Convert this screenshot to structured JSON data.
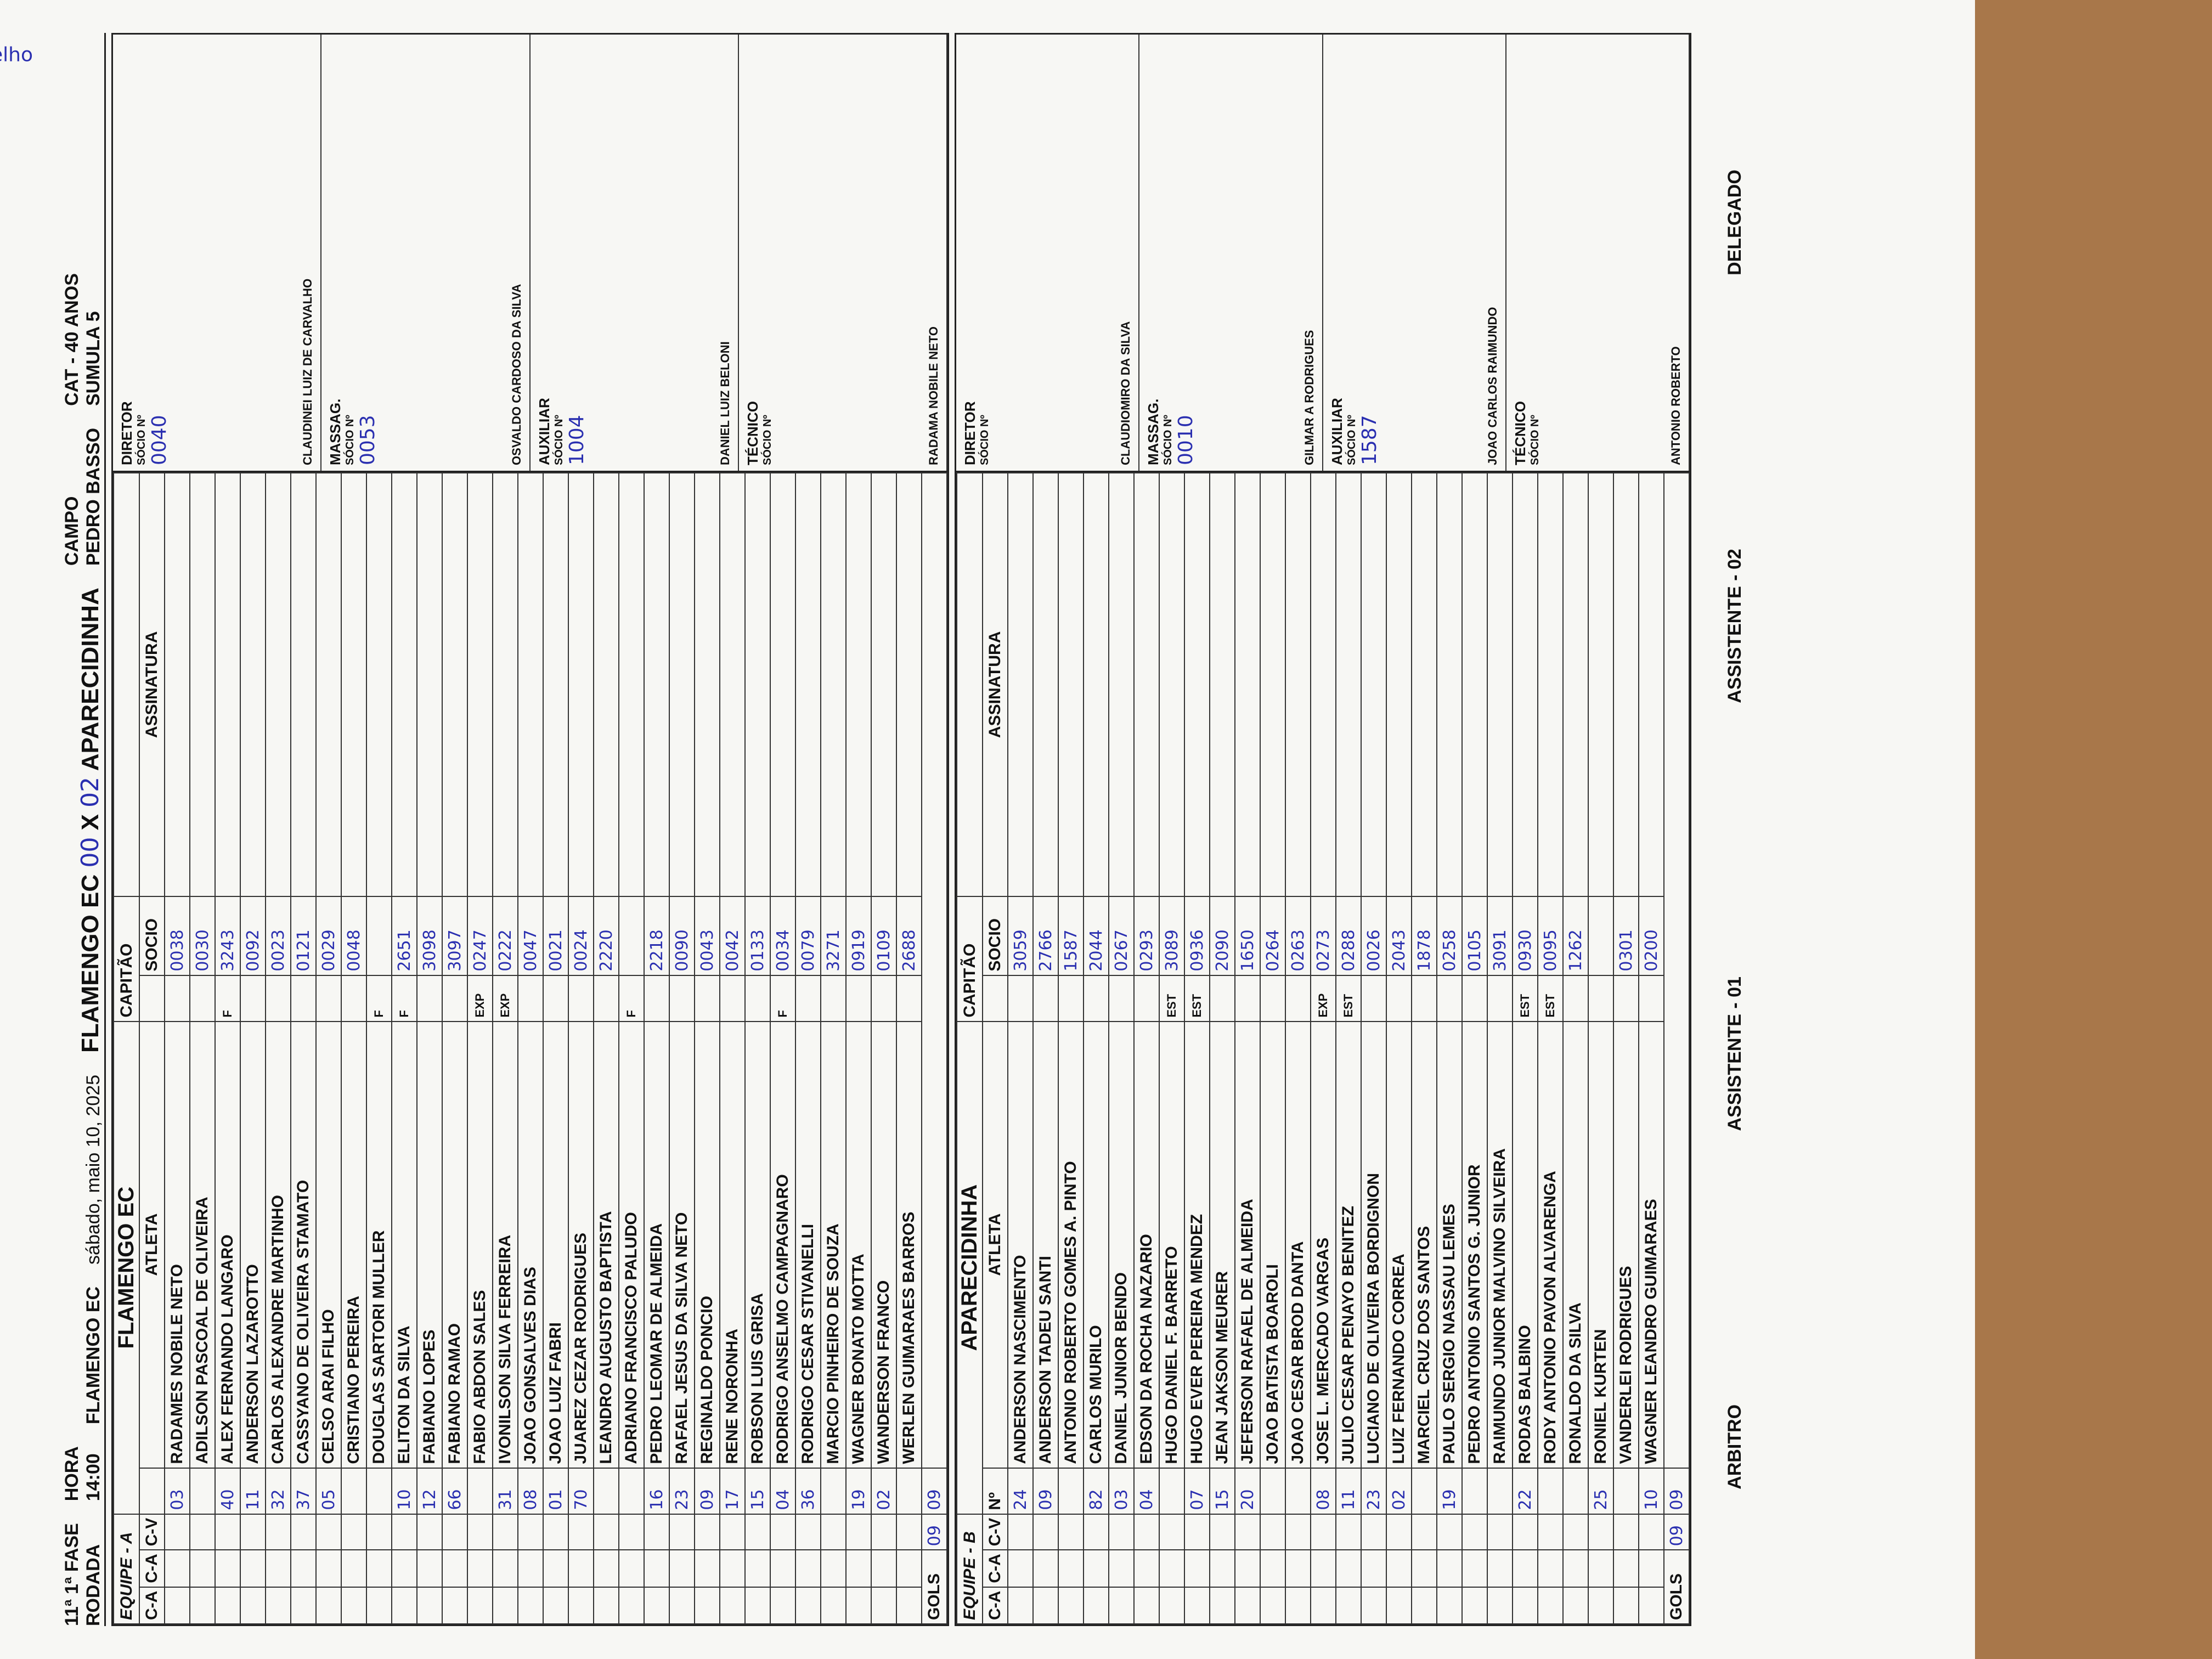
{
  "header": {
    "round": "11ª",
    "phase": "1ª FASE",
    "round_label": "RODADA",
    "time_label": "HORA",
    "time": "14:00",
    "home_team": "FLAMENGO EC",
    "date": "sábado, maio 10, 2025",
    "match": {
      "home": "FLAMENGO EC",
      "score_home": "00",
      "vs": "X",
      "score_away": "02",
      "away": "APARECIDINHA"
    },
    "field_label": "CAMPO",
    "field": "PEDRO BASSO",
    "category": "CAT - 40 ANOS",
    "sheet_label": "SUMULA",
    "sheet_no": "5"
  },
  "labels": {
    "captain": "CAPITÃO",
    "athlete": "ATLETA",
    "member": "SOCIO",
    "signature": "ASSINATURA",
    "number": "Nº",
    "ca": "C-A",
    "cv": "C-V",
    "goals": "GOLS",
    "member_no": "SÓCIO Nº"
  },
  "teams": [
    {
      "label": "EQUIPE - A",
      "name": "FLAMENGO EC",
      "goals_ca": "09",
      "goals_cv": "09",
      "players": [
        {
          "number": "03",
          "name": "RADAMES NOBILE NETO",
          "socio": "0038"
        },
        {
          "name": "ADILSON PASCOAL DE OLIVEIRA",
          "socio": "0030"
        },
        {
          "number": "40",
          "name": "ALEX FERNANDO LANGARO",
          "status": "F",
          "socio": "3243"
        },
        {
          "number": "11",
          "name": "ANDERSON LAZAROTTO",
          "socio": "0092"
        },
        {
          "number": "32",
          "name": "CARLOS ALEXANDRE MARTINHO",
          "socio": "0023"
        },
        {
          "number": "37",
          "name": "CASSYANO DE OLIVEIRA STAMATO",
          "socio": "0121"
        },
        {
          "number": "05",
          "name": "CELSO ARAI FILHO",
          "socio": "0029"
        },
        {
          "name": "CRISTIANO PEREIRA",
          "socio": "0048"
        },
        {
          "name": "DOUGLAS SARTORI MULLER",
          "status": "F"
        },
        {
          "number": "10",
          "name": "ELITON DA SILVA",
          "status": "F",
          "socio": "2651"
        },
        {
          "number": "12",
          "name": "FABIANO LOPES",
          "socio": "3098"
        },
        {
          "number": "66",
          "name": "FABIANO RAMAO",
          "socio": "3097"
        },
        {
          "name": "FABIO ABDON SALES",
          "status": "EXP",
          "socio": "0247"
        },
        {
          "number": "31",
          "name": "IVONILSON SILVA FERREIRA",
          "status": "EXP",
          "socio": "0222"
        },
        {
          "number": "08",
          "name": "JOAO GONSALVES DIAS",
          "socio": "0047"
        },
        {
          "number": "01",
          "name": "JOAO LUIZ FABRI",
          "socio": "0021"
        },
        {
          "number": "70",
          "name": "JUAREZ CEZAR RODRIGUES",
          "socio": "0024"
        },
        {
          "name": "LEANDRO AUGUSTO BAPTISTA",
          "socio": "2220"
        },
        {
          "name": "ADRIANO FRANCISCO PALUDO",
          "status": "F"
        },
        {
          "number": "16",
          "name": "PEDRO LEOMAR DE ALMEIDA",
          "socio": "2218"
        },
        {
          "number": "23",
          "name": "RAFAEL JESUS DA SILVA NETO",
          "socio": "0090"
        },
        {
          "number": "09",
          "name": "REGINALDO PONCIO",
          "socio": "0043"
        },
        {
          "number": "17",
          "name": "RENE NORONHA",
          "socio": "0042"
        },
        {
          "number": "15",
          "name": "ROBSON LUIS GRISA",
          "socio": "0133"
        },
        {
          "number": "04",
          "name": "RODRIGO ANSELMO CAMPAGNARO",
          "status": "F",
          "socio": "0034"
        },
        {
          "number": "36",
          "name": "RODRIGO CESAR STIVANELLI",
          "socio": "0079"
        },
        {
          "name": "MARCIO PINHEIRO DE SOUZA",
          "socio": "3271"
        },
        {
          "number": "19",
          "name": "WAGNER BONATO MOTTA",
          "socio": "0919"
        },
        {
          "number": "02",
          "name": "WANDERSON FRANCO",
          "socio": "0109"
        },
        {
          "name": "WERLEN GUIMARAES BARROS",
          "socio": "2688"
        }
      ],
      "staff": [
        {
          "role": "DIRETOR",
          "name": "CLAUDINEI LUIZ DE CARVALHO",
          "socio": "0040"
        },
        {
          "role": "MASSAG.",
          "name": "OSVALDO CARDOSO DA SILVA",
          "socio": "0053"
        },
        {
          "role": "AUXILIAR",
          "name": "DANIEL LUIZ BELONI",
          "socio": "1004"
        },
        {
          "role": "TÉCNICO",
          "name": "RADAMA NOBILE NETO"
        }
      ]
    },
    {
      "label": "EQUIPE - B",
      "name": "APARECIDINHA",
      "goals_ca": "09",
      "goals_cv": "09",
      "players": [
        {
          "number": "24",
          "name": "ANDERSON NASCIMENTO",
          "socio": "3059"
        },
        {
          "number": "09",
          "name": "ANDERSON TADEU SANTI",
          "socio": "2766"
        },
        {
          "name": "ANTONIO ROBERTO GOMES A. PINTO",
          "socio": "1587"
        },
        {
          "number": "82",
          "name": "CARLOS MURILO",
          "socio": "2044"
        },
        {
          "number": "03",
          "name": "DANIEL JUNIOR BENDO",
          "socio": "0267"
        },
        {
          "number": "04",
          "name": "EDSON DA ROCHA NAZARIO",
          "socio": "0293"
        },
        {
          "name": "HUGO DANIEL F. BARRETO",
          "status": "EST",
          "socio": "3089"
        },
        {
          "number": "07",
          "name": "HUGO EVER PEREIRA MENDEZ",
          "status": "EST",
          "socio": "0936"
        },
        {
          "number": "15",
          "name": "JEAN JAKSON MEURER",
          "socio": "2090"
        },
        {
          "number": "20",
          "name": "JEFERSON RAFAEL DE ALMEIDA",
          "socio": "1650"
        },
        {
          "name": "JOAO BATISTA BOAROLI",
          "socio": "0264"
        },
        {
          "name": "JOAO CESAR BROD DANTA",
          "socio": "0263"
        },
        {
          "number": "08",
          "name": "JOSE L. MERCADO VARGAS",
          "status": "EXP",
          "socio": "0273"
        },
        {
          "number": "11",
          "name": "JULIO CESAR PENAYO BENITEZ",
          "status": "EST",
          "socio": "0288"
        },
        {
          "number": "23",
          "name": "LUCIANO DE OLIVEIRA BORDIGNON",
          "socio": "0026"
        },
        {
          "number": "02",
          "name": "LUIZ FERNANDO CORREA",
          "socio": "2043"
        },
        {
          "name": "MARCIEL CRUZ DOS SANTOS",
          "socio": "1878"
        },
        {
          "number": "19",
          "name": "PAULO SERGIO NASSAU LEMES",
          "socio": "0258"
        },
        {
          "name": "PEDRO ANTONIO SANTOS G. JUNIOR",
          "socio": "0105"
        },
        {
          "name": "RAIMUNDO JUNIOR MALVINO SILVEIRA",
          "socio": "3091"
        },
        {
          "number": "22",
          "name": "RODAS BALBINO",
          "status": "EST",
          "socio": "0930"
        },
        {
          "name": "RODY ANTONIO PAVON ALVARENGA",
          "status": "EST",
          "socio": "0095"
        },
        {
          "name": "RONALDO DA SILVA",
          "socio": "1262"
        },
        {
          "number": "25",
          "name": "RONIEL KURTEN"
        },
        {
          "name": "VANDERLEI RODRIGUES",
          "socio": "0301"
        },
        {
          "number": "10",
          "name": "WAGNER LEANDRO GUIMARAES",
          "socio": "0200"
        }
      ],
      "staff": [
        {
          "role": "DIRETOR",
          "name": "CLAUDIOMIRO DA SILVA"
        },
        {
          "role": "MASSAG.",
          "name": "GILMAR A RODRIGUES",
          "socio": "0010"
        },
        {
          "role": "AUXILIAR",
          "name": "JOAO CARLOS RAIMUNDO",
          "socio": "1587"
        },
        {
          "role": "TÉCNICO",
          "name": "ANTONIO ROBERTO"
        }
      ]
    }
  ],
  "annotation": "CARTÃO Vermelho",
  "footer": {
    "referee": "ARBITRO",
    "assistant1": "ASSISTENTE - 01",
    "assistant2": "ASSISTENTE - 02",
    "delegate": "DELEGADO"
  }
}
